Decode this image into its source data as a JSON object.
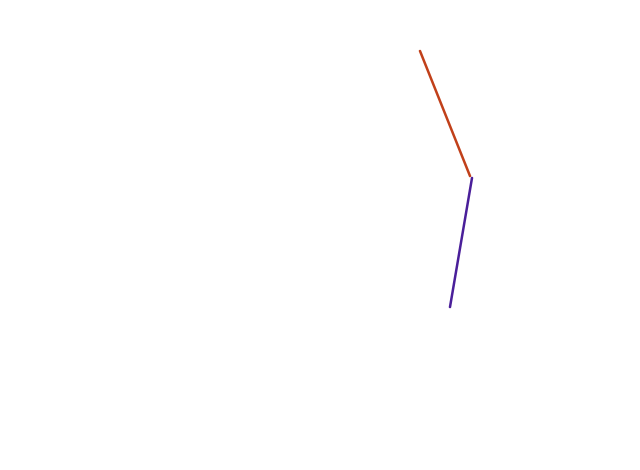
{
  "drawing": {
    "background_color": "#ffffff",
    "segments": [
      {
        "name": "upper-segment",
        "color": "#c1401a"
      },
      {
        "name": "lower-segment",
        "color": "#4a1f9a"
      }
    ]
  }
}
